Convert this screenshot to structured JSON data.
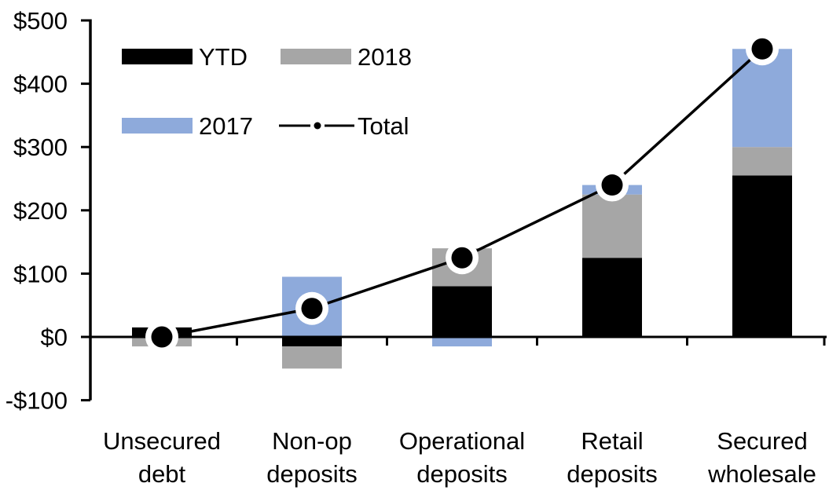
{
  "chart_data": {
    "type": "bar",
    "subtype": "stacked-bar-with-total-line",
    "title": "",
    "xlabel": "",
    "ylabel": "",
    "grid": false,
    "currency_prefix": "$",
    "categories": [
      "Unsecured debt",
      "Non-op deposits",
      "Operational deposits",
      "Retail deposits",
      "Secured wholesale"
    ],
    "category_label_lines": [
      [
        "Unsecured",
        "debt"
      ],
      [
        "Non-op",
        "deposits"
      ],
      [
        "Operational",
        "deposits"
      ],
      [
        "Retail",
        "deposits"
      ],
      [
        "Secured",
        "wholesale"
      ]
    ],
    "series": [
      {
        "name": "YTD",
        "color": "#000000",
        "values": [
          15,
          -15,
          80,
          125,
          255
        ]
      },
      {
        "name": "2018",
        "color": "#a6a6a6",
        "values": [
          -15,
          -35,
          60,
          100,
          45
        ]
      },
      {
        "name": "2017",
        "color": "#8eaadb",
        "values": [
          0,
          95,
          -15,
          15,
          155
        ]
      }
    ],
    "total_line": {
      "name": "Total",
      "color": "#000000",
      "marker": "filled-circle-with-white-ring",
      "values": [
        0,
        45,
        125,
        240,
        455
      ]
    },
    "ylim": [
      -100,
      500
    ],
    "ytick_step": 100,
    "ytick_labels": [
      "-$100",
      "$0",
      "$100",
      "$200",
      "$300",
      "$400",
      "$500"
    ],
    "legend": {
      "position": "top-left-inside",
      "items": [
        {
          "label": "YTD",
          "swatch": "#000000"
        },
        {
          "label": "2018",
          "swatch": "#a6a6a6"
        },
        {
          "label": "2017",
          "swatch": "#8eaadb"
        },
        {
          "label": "Total",
          "glyph": "line-dot",
          "color": "#000000"
        }
      ]
    }
  }
}
